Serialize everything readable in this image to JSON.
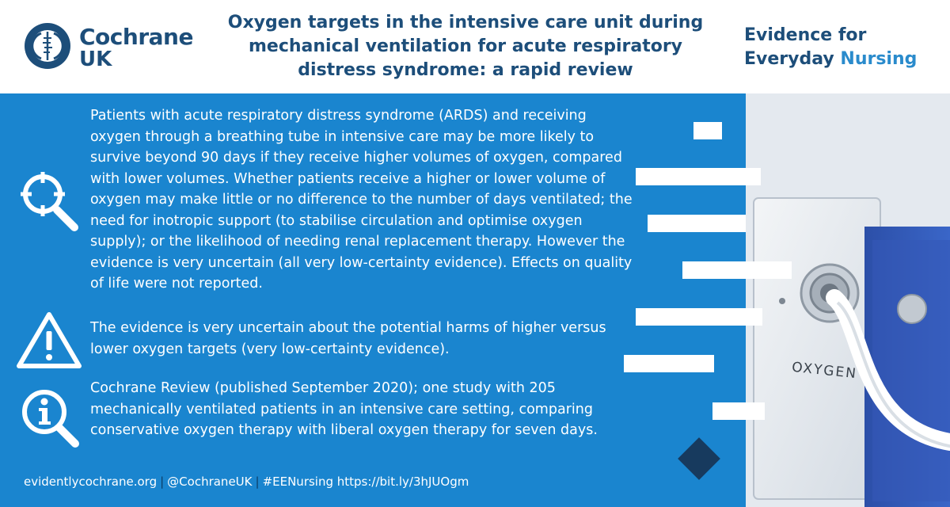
{
  "header": {
    "logo_name": "Cochrane",
    "logo_sub": "UK",
    "title": "Oxygen targets in the intensive care unit during mechanical ventilation for acute respiratory distress syndrome: a rapid review",
    "tagline_line1": "Evidence for",
    "tagline_line2_a": "Everyday ",
    "tagline_line2_b": "Nursing"
  },
  "sections": [
    {
      "icon": "magnifier-crosshair-icon",
      "text": "Patients with acute respiratory distress syndrome (ARDS) and receiving oxygen through a breathing tube in intensive care may be more likely to survive beyond 90 days if they receive higher volumes of oxygen, compared with lower volumes. Whether patients receive a higher or lower volume of oxygen may make little or no difference to the number of days ventilated; the need for inotropic support (to stabilise circulation and optimise oxygen supply); or the likelihood of needing renal replacement therapy. However the evidence is very uncertain (all very low-certainty evidence). Effects on quality of life were not reported."
    },
    {
      "icon": "warning-triangle-icon",
      "text": "The evidence is very uncertain about the potential harms of higher versus lower oxygen targets (very low-certainty evidence)."
    },
    {
      "icon": "info-magnifier-icon",
      "text": "Cochrane Review (published September 2020); one study with 205 mechanically ventilated patients in an intensive care setting, comparing conservative oxygen therapy with liberal oxygen therapy for seven days."
    }
  ],
  "photo": {
    "label": "OXYGEN"
  },
  "footer": {
    "site": "evidentlycochrane.org",
    "twitter": "@CochraneUK",
    "hashtag_link": "#EENursing https://bit.ly/3hJUOgm",
    "separator": "|"
  },
  "colors": {
    "panel": "#1a85cf",
    "navy": "#1d4e7a",
    "accent": "#2a8bcc",
    "diamond": "#173a5e"
  }
}
